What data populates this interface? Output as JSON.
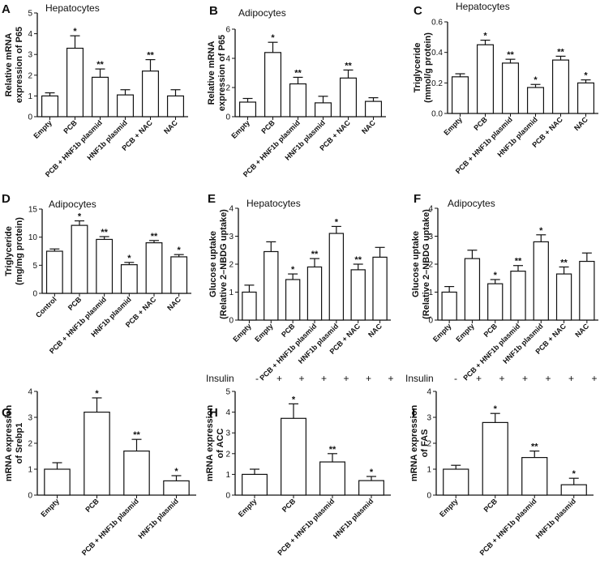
{
  "figure": {
    "type": "multi-panel bar chart",
    "insulin_label": "Insulin",
    "insulin_signs": [
      "-",
      "+",
      "+",
      "+",
      "+",
      "+",
      "+"
    ]
  },
  "chart_data": [
    {
      "panel": "A",
      "type": "bar",
      "title": "Hepatocytes",
      "ylabel": [
        "Relative mRNA",
        "expression of P65"
      ],
      "ylim": [
        0,
        5
      ],
      "yticks": [
        0,
        1,
        2,
        3,
        4,
        5
      ],
      "categories": [
        "Empty",
        "PCB",
        "PCB + HNF1b plasmid",
        "HNF1b plasmid",
        "PCB + NAC",
        "NAC"
      ],
      "values": [
        1.0,
        3.3,
        1.9,
        1.05,
        2.2,
        1.0
      ],
      "errors": [
        0.15,
        0.6,
        0.4,
        0.25,
        0.55,
        0.3
      ],
      "significance": [
        "",
        "*",
        "**",
        "",
        "**",
        ""
      ]
    },
    {
      "panel": "B",
      "type": "bar",
      "title": "Adipocytes",
      "ylabel": [
        "Relative mRNA",
        "expression of P65"
      ],
      "ylim": [
        0,
        6
      ],
      "yticks": [
        0,
        2,
        4,
        6
      ],
      "categories": [
        "Empty",
        "PCB",
        "PCB + HNF1b plasmid",
        "HNF1b plasmid",
        "PCB + NAC",
        "NAC"
      ],
      "values": [
        1.0,
        4.4,
        2.25,
        0.95,
        2.65,
        1.05
      ],
      "errors": [
        0.25,
        0.7,
        0.45,
        0.45,
        0.55,
        0.25
      ],
      "significance": [
        "",
        "*",
        "**",
        "",
        "**",
        ""
      ]
    },
    {
      "panel": "C",
      "type": "bar",
      "title": "Hepatocytes",
      "ylabel": [
        "Triglyceride",
        "(mmol/g protein)"
      ],
      "ylim": [
        0,
        0.6
      ],
      "yticks": [
        0.0,
        0.2,
        0.4,
        0.6
      ],
      "ytick_labels": [
        "0.0",
        "0.2",
        "0.4",
        "0.6"
      ],
      "categories": [
        "Empty",
        "PCB",
        "PCB + HNF1b plasmid",
        "HNF1b plasmid",
        "PCB + NAC",
        "NAC"
      ],
      "values": [
        0.24,
        0.45,
        0.33,
        0.17,
        0.35,
        0.2
      ],
      "errors": [
        0.02,
        0.03,
        0.025,
        0.02,
        0.025,
        0.02
      ],
      "significance": [
        "",
        "*",
        "**",
        "*",
        "**",
        "*"
      ]
    },
    {
      "panel": "D",
      "type": "bar",
      "title": "Adipocytes",
      "ylabel": [
        "Triglyceride",
        "(mg/mg protein)"
      ],
      "ylim": [
        0,
        15
      ],
      "yticks": [
        0,
        5,
        10,
        15
      ],
      "categories": [
        "Control",
        "PCB",
        "PCB + HNF1b plasmid",
        "HNF1b plasmid",
        "PCB + NAC",
        "NAC"
      ],
      "values": [
        7.5,
        12.1,
        9.6,
        5.1,
        9.0,
        6.5
      ],
      "errors": [
        0.4,
        0.8,
        0.5,
        0.4,
        0.4,
        0.4
      ],
      "significance": [
        "",
        "*",
        "**",
        "*",
        "**",
        "*"
      ]
    },
    {
      "panel": "E",
      "type": "bar",
      "title": "Hepatocytes",
      "ylabel": [
        "Glucose uptake",
        "(Relative 2–NBDG uptake)"
      ],
      "ylim": [
        0,
        4
      ],
      "yticks": [
        0,
        1,
        2,
        3,
        4
      ],
      "categories": [
        "Empty",
        "Empty",
        "PCB",
        "PCB + HNF1b plasmid",
        "HNF1b plasmid",
        "PCB + NAC",
        "NAC"
      ],
      "values": [
        1.0,
        2.45,
        1.45,
        1.9,
        3.1,
        1.8,
        2.25
      ],
      "errors": [
        0.25,
        0.35,
        0.2,
        0.3,
        0.25,
        0.2,
        0.35
      ],
      "significance": [
        "",
        "",
        "*",
        "**",
        "*",
        "**",
        ""
      ]
    },
    {
      "panel": "F",
      "type": "bar",
      "title": "Adipocytes",
      "ylabel": [
        "Glucose uptake",
        "(Relative 2–NBDG uptake)"
      ],
      "ylim": [
        0,
        4
      ],
      "yticks": [
        0,
        1,
        2,
        3,
        4
      ],
      "categories": [
        "Empty",
        "Empty",
        "PCB",
        "PCB + HNF1b plasmid",
        "HNF1b plasmid",
        "PCB + NAC",
        "NAC"
      ],
      "values": [
        1.0,
        2.2,
        1.3,
        1.75,
        2.8,
        1.65,
        2.1
      ],
      "errors": [
        0.2,
        0.3,
        0.15,
        0.2,
        0.25,
        0.25,
        0.3
      ],
      "significance": [
        "",
        "",
        "*",
        "**",
        "*",
        "**",
        ""
      ]
    },
    {
      "panel": "G",
      "type": "bar",
      "title": "",
      "ylabel": [
        "mRNA expression",
        "of Srebp1"
      ],
      "ylim": [
        0,
        4
      ],
      "yticks": [
        0,
        1,
        2,
        3,
        4
      ],
      "categories": [
        "Empty",
        "PCB",
        "PCB + HNF1b plasmid",
        "HNF1b plasmid"
      ],
      "values": [
        1.0,
        3.2,
        1.7,
        0.55
      ],
      "errors": [
        0.25,
        0.55,
        0.45,
        0.2
      ],
      "significance": [
        "",
        "*",
        "**",
        "*"
      ]
    },
    {
      "panel": "H",
      "type": "bar",
      "title": "",
      "ylabel": [
        "mRNA expression",
        "of ACC"
      ],
      "ylim": [
        0,
        5
      ],
      "yticks": [
        0,
        1,
        2,
        3,
        4,
        5
      ],
      "categories": [
        "Empty",
        "PCB",
        "PCB + HNF1b plasmid",
        "HNF1b plasmid"
      ],
      "values": [
        1.0,
        3.7,
        1.6,
        0.7
      ],
      "errors": [
        0.25,
        0.7,
        0.4,
        0.2
      ],
      "significance": [
        "",
        "*",
        "**",
        "*"
      ]
    },
    {
      "panel": "I",
      "type": "bar",
      "title": "",
      "ylabel": [
        "mRNA expression",
        "of FAS"
      ],
      "ylim": [
        0,
        4
      ],
      "yticks": [
        0,
        1,
        2,
        3,
        4
      ],
      "categories": [
        "Empty",
        "PCB",
        "PCB + HNF1b plasmid",
        "HNF1b plasmid"
      ],
      "values": [
        1.0,
        2.8,
        1.45,
        0.4
      ],
      "errors": [
        0.15,
        0.35,
        0.25,
        0.25
      ],
      "significance": [
        "",
        "*",
        "**",
        "*"
      ]
    }
  ]
}
